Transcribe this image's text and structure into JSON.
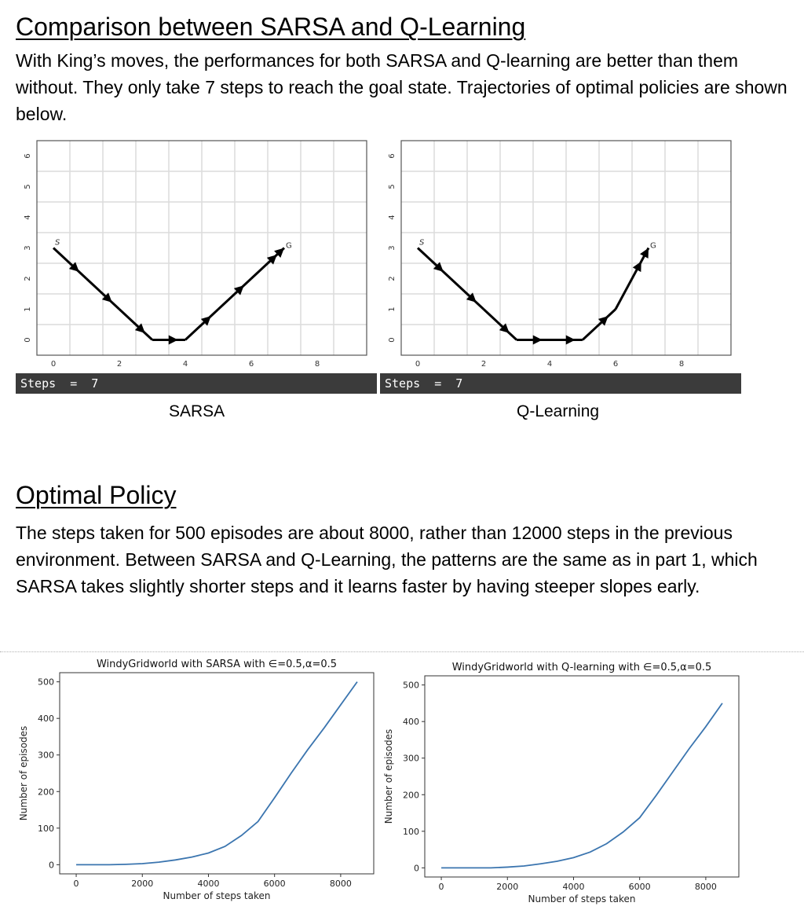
{
  "section1": {
    "title": "Comparison between SARSA and Q-Learning",
    "paragraph": "With King’s moves, the performances for both SARSA and Q-learning are better than them without. They only take 7 steps to reach the goal state. Trajectories of optimal policies are shown below."
  },
  "grids": [
    {
      "caption": "SARSA",
      "steps_text": "Steps  =  7",
      "start_label": "S",
      "goal_label": "G",
      "x_ticks": [
        "0",
        "2",
        "4",
        "6",
        "8"
      ],
      "y_ticks": [
        "0",
        "1",
        "2",
        "3",
        "4",
        "5",
        "6"
      ],
      "trajectory": [
        [
          0,
          3
        ],
        [
          1,
          2
        ],
        [
          2,
          1
        ],
        [
          3,
          0
        ],
        [
          4,
          0
        ],
        [
          5,
          1
        ],
        [
          6,
          2
        ],
        [
          7,
          3
        ]
      ]
    },
    {
      "caption": "Q-Learning",
      "steps_text": "Steps  =  7",
      "start_label": "S",
      "goal_label": "G",
      "x_ticks": [
        "0",
        "2",
        "4",
        "6",
        "8"
      ],
      "y_ticks": [
        "0",
        "1",
        "2",
        "3",
        "4",
        "5",
        "6"
      ],
      "trajectory": [
        [
          0,
          3
        ],
        [
          1,
          2
        ],
        [
          2,
          1
        ],
        [
          3,
          0
        ],
        [
          4,
          0
        ],
        [
          5,
          0
        ],
        [
          6,
          1
        ],
        [
          7,
          3
        ]
      ]
    }
  ],
  "section2": {
    "title": "Optimal Policy",
    "paragraph": "The steps taken for 500 episodes are about 8000, rather than 12000 steps in the previous environment. Between SARSA and Q-Learning, the patterns are the same as in part 1, which SARSA takes slightly shorter steps and it learns faster by having steeper slopes early."
  },
  "chart_data": [
    {
      "type": "line",
      "title": "WindyGridworld with SARSA with ∈=0.5,α=0.5",
      "xlabel": "Number of steps taken",
      "ylabel": "Number of episodes",
      "xlim": [
        -500,
        9000
      ],
      "ylim": [
        -25,
        525
      ],
      "x_ticks": [
        0,
        2000,
        4000,
        6000,
        8000
      ],
      "y_ticks": [
        0,
        100,
        200,
        300,
        400,
        500
      ],
      "series": [
        {
          "color": "#3b75af",
          "x": [
            0,
            500,
            1000,
            1500,
            2000,
            2500,
            3000,
            3500,
            4000,
            4500,
            5000,
            5500,
            6000,
            6500,
            7000,
            7500,
            8000,
            8500
          ],
          "y": [
            0,
            0,
            0,
            1,
            3,
            7,
            13,
            21,
            32,
            50,
            80,
            118,
            183,
            250,
            314,
            374,
            437,
            500
          ]
        }
      ],
      "color": "#3b75af"
    },
    {
      "type": "line",
      "title": "WindyGridworld with Q-learning with ∈=0.5,α=0.5",
      "xlabel": "Number of steps taken",
      "ylabel": "Number of episodes",
      "xlim": [
        -500,
        9000
      ],
      "ylim": [
        -25,
        525
      ],
      "x_ticks": [
        0,
        2000,
        4000,
        6000,
        8000
      ],
      "y_ticks": [
        0,
        100,
        200,
        300,
        400,
        500
      ],
      "series": [
        {
          "color": "#3b75af",
          "x": [
            0,
            500,
            1000,
            1500,
            2000,
            2500,
            3000,
            3500,
            4000,
            4500,
            5000,
            5500,
            6000,
            6500,
            7000,
            7500,
            8000,
            8500
          ],
          "y": [
            0,
            0,
            0,
            0,
            2,
            5,
            11,
            18,
            28,
            43,
            66,
            98,
            137,
            198,
            262,
            326,
            386,
            450
          ]
        }
      ],
      "color": "#3b75af"
    }
  ]
}
